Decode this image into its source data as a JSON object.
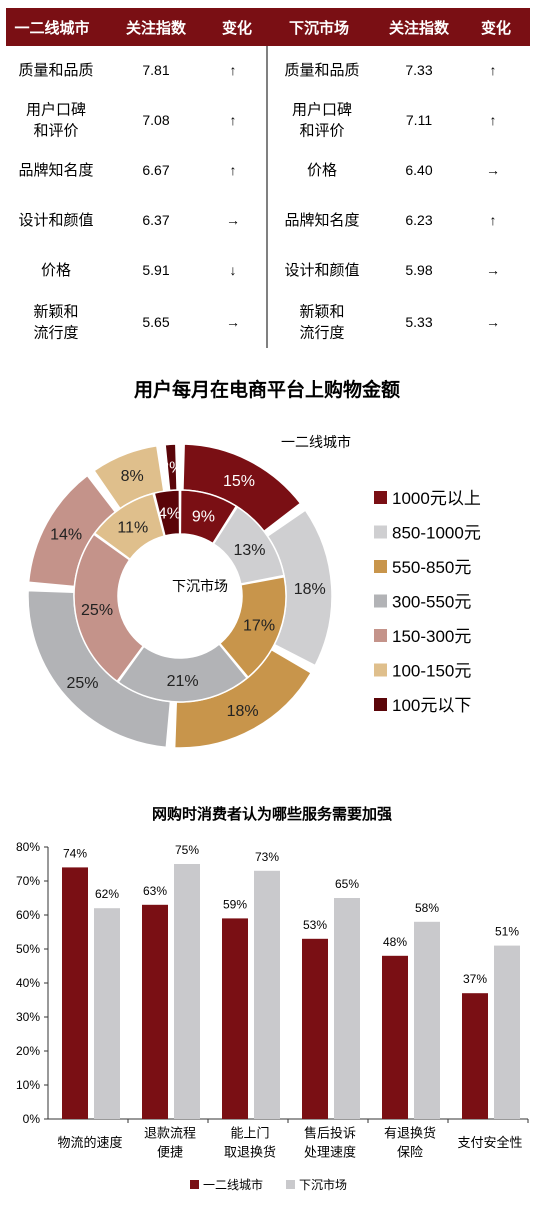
{
  "table": {
    "left_headers": [
      "一二线城市",
      "关注指数",
      "变化"
    ],
    "right_headers": [
      "下沉市场",
      "关注指数",
      "变化"
    ],
    "left_rows": [
      {
        "factor": "质量和品质",
        "index": "7.81",
        "change": "↑"
      },
      {
        "factor": "用户口碑\n和评价",
        "index": "7.08",
        "change": "↑"
      },
      {
        "factor": "品牌知名度",
        "index": "6.67",
        "change": "↑"
      },
      {
        "factor": "设计和颜值",
        "index": "6.37",
        "change": "→"
      },
      {
        "factor": "价格",
        "index": "5.91",
        "change": "↓"
      },
      {
        "factor": "新颖和\n流行度",
        "index": "5.65",
        "change": "→"
      }
    ],
    "right_rows": [
      {
        "factor": "质量和品质",
        "index": "7.33",
        "change": "↑"
      },
      {
        "factor": "用户口碑\n和评价",
        "index": "7.11",
        "change": "↑"
      },
      {
        "factor": "价格",
        "index": "6.40",
        "change": "→"
      },
      {
        "factor": "品牌知名度",
        "index": "6.23",
        "change": "↑"
      },
      {
        "factor": "设计和颜值",
        "index": "5.98",
        "change": "→"
      },
      {
        "factor": "新颖和\n流行度",
        "index": "5.33",
        "change": "→"
      }
    ]
  },
  "colors": {
    "header_bg": "#7a0f14",
    "header_text": "#ffffff",
    "c1000": "#7a0f14",
    "c850": "#cfcfd1",
    "c550": "#c8954b",
    "c300": "#b2b3b6",
    "c150": "#c4938a",
    "c100": "#dfbf8c",
    "cbelow": "#5a0509",
    "bar1": "#7a0f14",
    "bar2": "#c9c9cc"
  },
  "chart_data": [
    {
      "type": "pie",
      "title": "用户每月在电商平台上购物金额",
      "categories": [
        "1000元以上",
        "850-1000元",
        "550-850元",
        "300-550元",
        "150-300元",
        "100-150元",
        "100元以下"
      ],
      "series": [
        {
          "name": "一二线城市",
          "values": [
            15,
            18,
            18,
            25,
            14,
            8,
            2
          ]
        },
        {
          "name": "下沉市场",
          "values": [
            9,
            13,
            17,
            21,
            25,
            11,
            4
          ]
        }
      ],
      "legend_position": "right"
    },
    {
      "type": "bar",
      "title": "网购时消费者认为哪些服务需要加强",
      "categories": [
        "物流的速度",
        "退款流程\n便捷",
        "能上门\n取退换货",
        "售后投诉\n处理速度",
        "有退换货\n保险",
        "支付安全性"
      ],
      "series": [
        {
          "name": "一二线城市",
          "values": [
            74,
            63,
            59,
            53,
            48,
            37
          ]
        },
        {
          "name": "下沉市场",
          "values": [
            62,
            75,
            73,
            65,
            58,
            51
          ]
        }
      ],
      "yticks": [
        "0%",
        "10%",
        "20%",
        "30%",
        "40%",
        "50%",
        "60%",
        "70%",
        "80%"
      ],
      "ylim": [
        0,
        80
      ],
      "grid": false,
      "legend_position": "bottom"
    }
  ]
}
